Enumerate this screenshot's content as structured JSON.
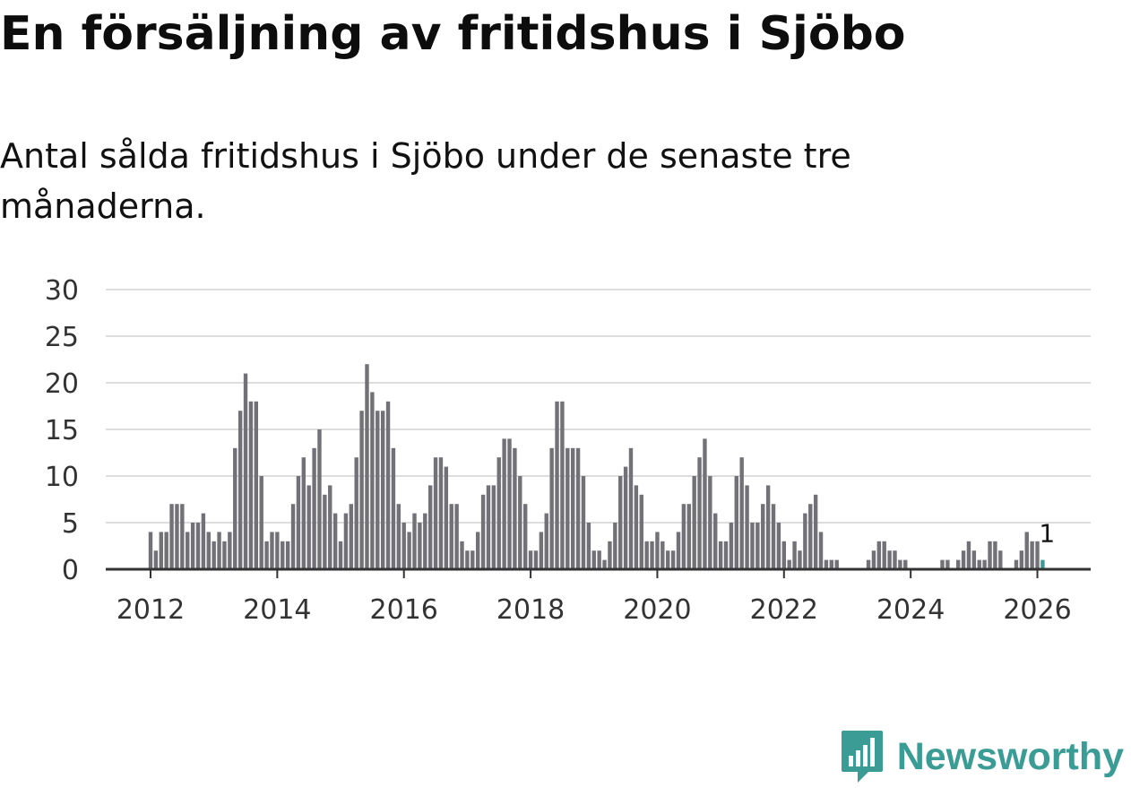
{
  "title": "En försäljning av fritidshus i Sjöbo",
  "subtitle": "Antal sålda fritidshus i Sjöbo under de senaste tre månaderna.",
  "brand": {
    "name": "Newsworthy",
    "color": "#3a9c95"
  },
  "colors": {
    "bar": "#727177",
    "highlight": "#3a9c95",
    "grid": "#dddddd",
    "axis": "#333333"
  },
  "chart_data": {
    "type": "bar",
    "title": "Antal sålda fritidshus i Sjöbo",
    "xlabel": "",
    "ylabel": "",
    "ylim": [
      0,
      30
    ],
    "yticks": [
      0,
      5,
      10,
      15,
      20,
      25,
      30
    ],
    "xticks": [
      "2012",
      "2014",
      "2016",
      "2018",
      "2020",
      "2022",
      "2024",
      "2026"
    ],
    "start": "2012-01",
    "values": [
      4,
      2,
      4,
      4,
      7,
      7,
      7,
      4,
      5,
      5,
      6,
      4,
      3,
      4,
      3,
      4,
      13,
      17,
      21,
      18,
      18,
      10,
      3,
      4,
      4,
      3,
      3,
      7,
      10,
      12,
      9,
      13,
      15,
      8,
      9,
      6,
      3,
      6,
      7,
      12,
      17,
      22,
      19,
      17,
      17,
      18,
      13,
      7,
      5,
      4,
      6,
      5,
      6,
      9,
      12,
      12,
      11,
      7,
      7,
      3,
      2,
      2,
      4,
      8,
      9,
      9,
      12,
      14,
      14,
      13,
      10,
      7,
      2,
      2,
      4,
      6,
      13,
      18,
      18,
      13,
      13,
      13,
      10,
      5,
      2,
      2,
      1,
      3,
      5,
      10,
      11,
      13,
      9,
      8,
      3,
      3,
      4,
      3,
      2,
      2,
      4,
      7,
      7,
      10,
      12,
      14,
      10,
      6,
      3,
      3,
      5,
      10,
      12,
      9,
      5,
      5,
      7,
      9,
      7,
      5,
      3,
      1,
      3,
      2,
      6,
      7,
      8,
      4,
      1,
      1,
      1,
      0,
      0,
      0,
      0,
      0,
      1,
      2,
      3,
      3,
      2,
      2,
      1,
      1,
      0,
      0,
      0,
      0,
      0,
      0,
      1,
      1,
      0,
      1,
      2,
      3,
      2,
      1,
      1,
      3,
      3,
      2,
      0,
      0,
      1,
      2,
      4,
      3,
      3,
      1
    ],
    "highlight_index": 169,
    "annotations": [
      {
        "index": 169,
        "text": "1"
      }
    ]
  }
}
